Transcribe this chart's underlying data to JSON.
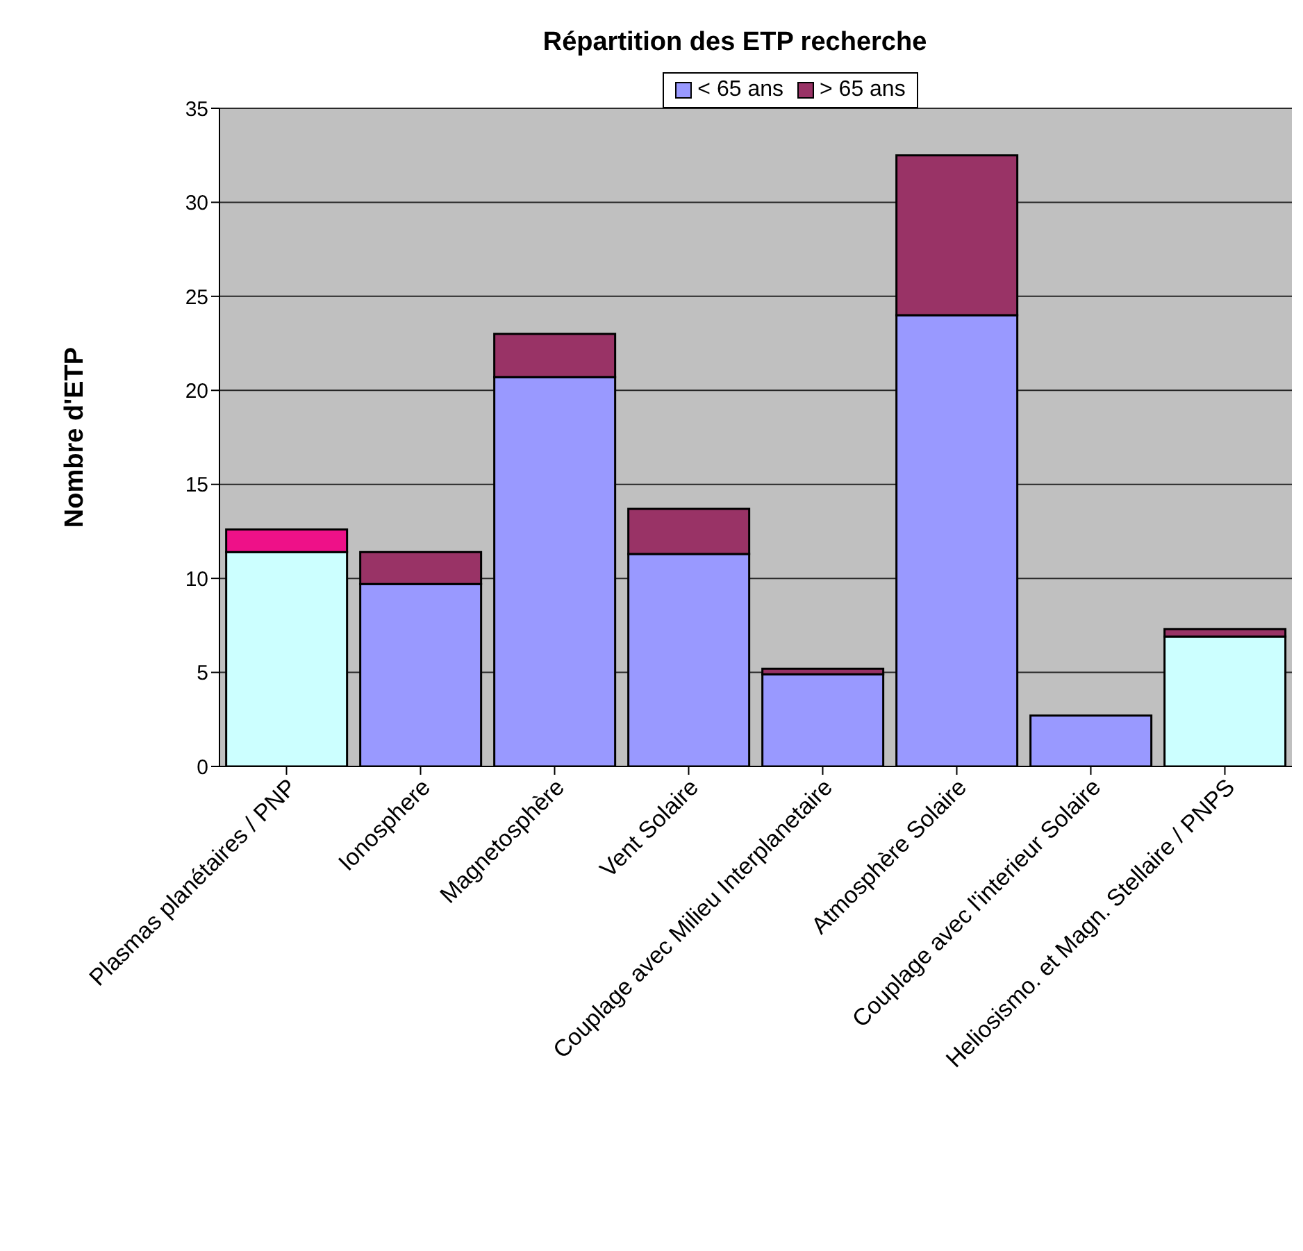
{
  "chart_data": {
    "type": "bar",
    "title": "Répartition des ETP recherche",
    "ylabel": "Nombre d'ETP",
    "categories": [
      "Plasmas planétaires / PNP",
      "Ionosphere",
      "Magnetosphère",
      "Vent Solaire",
      "Couplage avec Milieu Interplanetaire",
      "Atmosphère Solaire",
      "Couplage avec l'interieur Solaire",
      "Heliosismo. et Magn. Stellaire / PNPS"
    ],
    "stacked": true,
    "series": [
      {
        "name": "< 65 ans",
        "color": "#9999ff",
        "colors": [
          "#ccffff",
          "#9999ff",
          "#9999ff",
          "#9999ff",
          "#9999ff",
          "#9999ff",
          "#9999ff",
          "#ccffff"
        ],
        "values": [
          11.4,
          9.7,
          20.7,
          11.3,
          4.9,
          24.0,
          2.7,
          6.9
        ]
      },
      {
        "name": "> 65 ans",
        "color": "#993366",
        "colors": [
          "#ee1188",
          "#993366",
          "#993366",
          "#993366",
          "#993366",
          "#993366",
          "#993366",
          "#993366"
        ],
        "values": [
          1.2,
          1.7,
          2.3,
          2.4,
          0.3,
          8.5,
          0,
          0.4
        ]
      }
    ],
    "ylim": [
      0,
      35
    ],
    "yticks": [
      0,
      5,
      10,
      15,
      20,
      25,
      30,
      35
    ],
    "grid": "y",
    "legend": "top"
  }
}
